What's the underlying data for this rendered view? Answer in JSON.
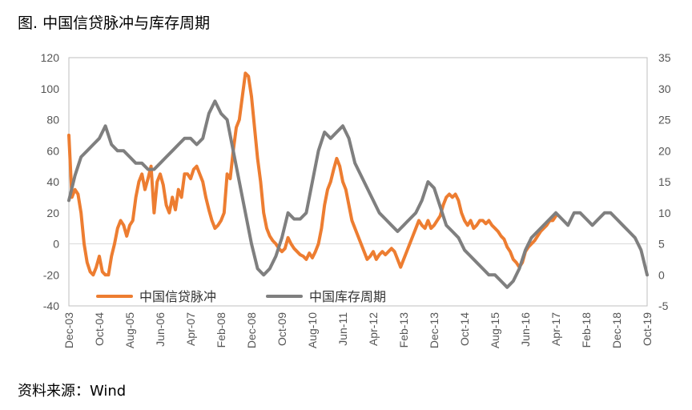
{
  "figure": {
    "title": "图. 中国信贷脉冲与库存周期",
    "source": "资料来源：Wind"
  },
  "colors": {
    "orange": "#ED7D31",
    "gray": "#7F7F7F",
    "grid": "#D9D9D9",
    "axis": "#BFBFBF"
  },
  "chart_data": {
    "type": "line",
    "title": "",
    "grid": false,
    "legend_position": "bottom-left",
    "x_tick_labels": [
      "Dec-03",
      "Oct-04",
      "Aug-05",
      "Jun-06",
      "Apr-07",
      "Feb-08",
      "Dec-08",
      "Oct-09",
      "Aug-10",
      "Jun-11",
      "Apr-12",
      "Feb-13",
      "Dec-13",
      "Oct-14",
      "Aug-15",
      "Jun-16",
      "Apr-17",
      "Feb-18",
      "Dec-18",
      "Oct-19"
    ],
    "y_left": {
      "min": -40,
      "max": 120,
      "ticks": [
        -40,
        -20,
        0,
        20,
        40,
        60,
        80,
        100,
        120
      ]
    },
    "y_right": {
      "min": -5,
      "max": 35,
      "ticks": [
        -5,
        0,
        5,
        10,
        15,
        20,
        25,
        30,
        35
      ]
    },
    "series": [
      {
        "name": "中国信贷脉冲",
        "axis": "left",
        "color": "#ED7D31",
        "points": [
          [
            "2003-12",
            70
          ],
          [
            "2004-01",
            30
          ],
          [
            "2004-02",
            35
          ],
          [
            "2004-03",
            32
          ],
          [
            "2004-04",
            20
          ],
          [
            "2004-05",
            0
          ],
          [
            "2004-06",
            -12
          ],
          [
            "2004-07",
            -18
          ],
          [
            "2004-08",
            -20
          ],
          [
            "2004-09",
            -15
          ],
          [
            "2004-10",
            -8
          ],
          [
            "2004-11",
            -18
          ],
          [
            "2004-12",
            -20
          ],
          [
            "2005-01",
            -20
          ],
          [
            "2005-02",
            -8
          ],
          [
            "2005-03",
            0
          ],
          [
            "2005-04",
            10
          ],
          [
            "2005-05",
            15
          ],
          [
            "2005-06",
            12
          ],
          [
            "2005-07",
            5
          ],
          [
            "2005-08",
            12
          ],
          [
            "2005-09",
            15
          ],
          [
            "2005-10",
            30
          ],
          [
            "2005-11",
            40
          ],
          [
            "2005-12",
            45
          ],
          [
            "2006-01",
            35
          ],
          [
            "2006-02",
            42
          ],
          [
            "2006-03",
            50
          ],
          [
            "2006-04",
            20
          ],
          [
            "2006-05",
            40
          ],
          [
            "2006-06",
            45
          ],
          [
            "2006-07",
            38
          ],
          [
            "2006-08",
            25
          ],
          [
            "2006-09",
            20
          ],
          [
            "2006-10",
            30
          ],
          [
            "2006-11",
            22
          ],
          [
            "2006-12",
            35
          ],
          [
            "2007-01",
            30
          ],
          [
            "2007-02",
            45
          ],
          [
            "2007-03",
            45
          ],
          [
            "2007-04",
            42
          ],
          [
            "2007-05",
            48
          ],
          [
            "2007-06",
            50
          ],
          [
            "2007-07",
            45
          ],
          [
            "2007-08",
            40
          ],
          [
            "2007-09",
            30
          ],
          [
            "2007-10",
            22
          ],
          [
            "2007-11",
            15
          ],
          [
            "2007-12",
            10
          ],
          [
            "2008-01",
            12
          ],
          [
            "2008-02",
            15
          ],
          [
            "2008-03",
            20
          ],
          [
            "2008-04",
            45
          ],
          [
            "2008-05",
            42
          ],
          [
            "2008-06",
            60
          ],
          [
            "2008-07",
            75
          ],
          [
            "2008-08",
            80
          ],
          [
            "2008-09",
            95
          ],
          [
            "2008-10",
            110
          ],
          [
            "2008-11",
            108
          ],
          [
            "2008-12",
            95
          ],
          [
            "2009-01",
            75
          ],
          [
            "2009-02",
            55
          ],
          [
            "2009-03",
            40
          ],
          [
            "2009-04",
            20
          ],
          [
            "2009-05",
            10
          ],
          [
            "2009-06",
            5
          ],
          [
            "2009-07",
            2
          ],
          [
            "2009-08",
            0
          ],
          [
            "2009-09",
            -3
          ],
          [
            "2009-10",
            -5
          ],
          [
            "2009-11",
            -3
          ],
          [
            "2009-12",
            4
          ],
          [
            "2010-01",
            0
          ],
          [
            "2010-02",
            -3
          ],
          [
            "2010-03",
            -5
          ],
          [
            "2010-04",
            -7
          ],
          [
            "2010-05",
            -8
          ],
          [
            "2010-06",
            -10
          ],
          [
            "2010-07",
            -6
          ],
          [
            "2010-08",
            -9
          ],
          [
            "2010-09",
            -5
          ],
          [
            "2010-10",
            0
          ],
          [
            "2010-11",
            10
          ],
          [
            "2010-12",
            25
          ],
          [
            "2011-01",
            35
          ],
          [
            "2011-02",
            40
          ],
          [
            "2011-03",
            48
          ],
          [
            "2011-04",
            55
          ],
          [
            "2011-05",
            50
          ],
          [
            "2011-06",
            40
          ],
          [
            "2011-07",
            35
          ],
          [
            "2011-08",
            25
          ],
          [
            "2011-09",
            15
          ],
          [
            "2011-10",
            10
          ],
          [
            "2011-11",
            5
          ],
          [
            "2011-12",
            0
          ],
          [
            "2012-01",
            -5
          ],
          [
            "2012-02",
            -10
          ],
          [
            "2012-03",
            -8
          ],
          [
            "2012-04",
            -5
          ],
          [
            "2012-05",
            -10
          ],
          [
            "2012-06",
            -7
          ],
          [
            "2012-07",
            -5
          ],
          [
            "2012-08",
            -7
          ],
          [
            "2012-09",
            -5
          ],
          [
            "2012-10",
            -3
          ],
          [
            "2012-11",
            -5
          ],
          [
            "2012-12",
            -10
          ],
          [
            "2013-01",
            -15
          ],
          [
            "2013-02",
            -10
          ],
          [
            "2013-03",
            -5
          ],
          [
            "2013-04",
            0
          ],
          [
            "2013-05",
            5
          ],
          [
            "2013-06",
            10
          ],
          [
            "2013-07",
            15
          ],
          [
            "2013-08",
            12
          ],
          [
            "2013-09",
            10
          ],
          [
            "2013-10",
            15
          ],
          [
            "2013-11",
            10
          ],
          [
            "2013-12",
            12
          ],
          [
            "2014-01",
            15
          ],
          [
            "2014-02",
            18
          ],
          [
            "2014-03",
            25
          ],
          [
            "2014-04",
            30
          ],
          [
            "2014-05",
            32
          ],
          [
            "2014-06",
            30
          ],
          [
            "2014-07",
            32
          ],
          [
            "2014-08",
            28
          ],
          [
            "2014-09",
            20
          ],
          [
            "2014-10",
            15
          ],
          [
            "2014-11",
            12
          ],
          [
            "2014-12",
            15
          ],
          [
            "2015-01",
            10
          ],
          [
            "2015-02",
            12
          ],
          [
            "2015-03",
            15
          ],
          [
            "2015-04",
            15
          ],
          [
            "2015-05",
            13
          ],
          [
            "2015-06",
            15
          ],
          [
            "2015-07",
            12
          ],
          [
            "2015-08",
            10
          ],
          [
            "2015-09",
            8
          ],
          [
            "2015-10",
            5
          ],
          [
            "2015-11",
            3
          ],
          [
            "2015-12",
            -2
          ],
          [
            "2016-01",
            -5
          ],
          [
            "2016-02",
            -10
          ],
          [
            "2016-03",
            -12
          ],
          [
            "2016-04",
            -15
          ],
          [
            "2016-05",
            -12
          ],
          [
            "2016-06",
            -5
          ],
          [
            "2016-07",
            -2
          ],
          [
            "2016-08",
            0
          ],
          [
            "2016-09",
            2
          ],
          [
            "2016-10",
            5
          ],
          [
            "2016-11",
            8
          ],
          [
            "2016-12",
            10
          ],
          [
            "2017-01",
            12
          ],
          [
            "2017-02",
            15
          ],
          [
            "2017-03",
            15
          ],
          [
            "2017-04",
            18
          ]
        ]
      },
      {
        "name": "中国库存周期",
        "axis": "right",
        "color": "#7F7F7F",
        "points": [
          [
            "2003-12",
            12
          ],
          [
            "2004-02",
            16
          ],
          [
            "2004-04",
            19
          ],
          [
            "2004-06",
            20
          ],
          [
            "2004-08",
            21
          ],
          [
            "2004-10",
            22
          ],
          [
            "2004-12",
            24
          ],
          [
            "2005-02",
            21
          ],
          [
            "2005-04",
            20
          ],
          [
            "2005-06",
            20
          ],
          [
            "2005-08",
            19
          ],
          [
            "2005-10",
            18
          ],
          [
            "2005-12",
            18
          ],
          [
            "2006-02",
            17
          ],
          [
            "2006-04",
            17
          ],
          [
            "2006-06",
            18
          ],
          [
            "2006-08",
            19
          ],
          [
            "2006-10",
            20
          ],
          [
            "2006-12",
            21
          ],
          [
            "2007-02",
            22
          ],
          [
            "2007-04",
            22
          ],
          [
            "2007-06",
            21
          ],
          [
            "2007-08",
            22
          ],
          [
            "2007-10",
            26
          ],
          [
            "2007-12",
            28
          ],
          [
            "2008-02",
            26
          ],
          [
            "2008-04",
            25
          ],
          [
            "2008-06",
            20
          ],
          [
            "2008-08",
            15
          ],
          [
            "2008-10",
            10
          ],
          [
            "2008-12",
            5
          ],
          [
            "2009-02",
            1
          ],
          [
            "2009-04",
            0
          ],
          [
            "2009-06",
            1
          ],
          [
            "2009-08",
            3
          ],
          [
            "2009-10",
            6
          ],
          [
            "2009-12",
            10
          ],
          [
            "2010-02",
            9
          ],
          [
            "2010-04",
            9
          ],
          [
            "2010-06",
            10
          ],
          [
            "2010-08",
            15
          ],
          [
            "2010-10",
            20
          ],
          [
            "2010-12",
            23
          ],
          [
            "2011-02",
            22
          ],
          [
            "2011-04",
            23
          ],
          [
            "2011-06",
            24
          ],
          [
            "2011-08",
            22
          ],
          [
            "2011-10",
            18
          ],
          [
            "2011-12",
            16
          ],
          [
            "2012-02",
            14
          ],
          [
            "2012-04",
            12
          ],
          [
            "2012-06",
            10
          ],
          [
            "2012-08",
            9
          ],
          [
            "2012-10",
            8
          ],
          [
            "2012-12",
            7
          ],
          [
            "2013-02",
            8
          ],
          [
            "2013-04",
            9
          ],
          [
            "2013-06",
            10
          ],
          [
            "2013-08",
            12
          ],
          [
            "2013-10",
            15
          ],
          [
            "2013-12",
            14
          ],
          [
            "2014-02",
            11
          ],
          [
            "2014-04",
            8
          ],
          [
            "2014-06",
            7
          ],
          [
            "2014-08",
            6
          ],
          [
            "2014-10",
            4
          ],
          [
            "2014-12",
            3
          ],
          [
            "2015-02",
            2
          ],
          [
            "2015-04",
            1
          ],
          [
            "2015-06",
            0
          ],
          [
            "2015-08",
            0
          ],
          [
            "2015-10",
            -1
          ],
          [
            "2015-12",
            -2
          ],
          [
            "2016-02",
            -1
          ],
          [
            "2016-04",
            1
          ],
          [
            "2016-06",
            4
          ],
          [
            "2016-08",
            6
          ],
          [
            "2016-10",
            7
          ],
          [
            "2016-12",
            8
          ],
          [
            "2017-02",
            9
          ],
          [
            "2017-04",
            10
          ],
          [
            "2017-06",
            9
          ],
          [
            "2017-08",
            8
          ],
          [
            "2017-10",
            10
          ],
          [
            "2017-12",
            10
          ],
          [
            "2018-02",
            9
          ],
          [
            "2018-04",
            8
          ],
          [
            "2018-06",
            9
          ],
          [
            "2018-08",
            10
          ],
          [
            "2018-10",
            10
          ],
          [
            "2018-12",
            9
          ],
          [
            "2019-02",
            8
          ],
          [
            "2019-04",
            7
          ],
          [
            "2019-06",
            6
          ],
          [
            "2019-08",
            4
          ],
          [
            "2019-10",
            0
          ]
        ]
      }
    ]
  }
}
